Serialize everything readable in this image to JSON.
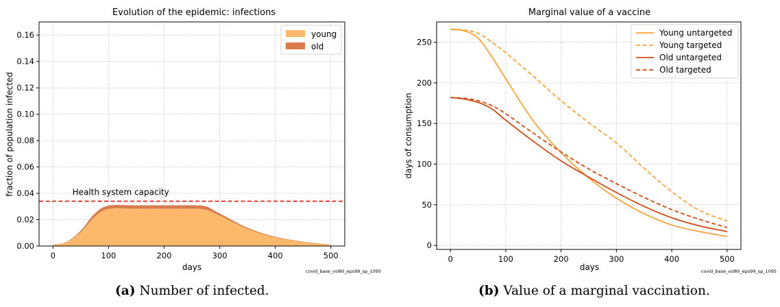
{
  "chart_data": [
    {
      "type": "area",
      "title": "Evolution of the epidemic: infections",
      "xlabel": "days",
      "ylabel": "fraction of population infected",
      "xlim": [
        -25,
        525
      ],
      "ylim": [
        0,
        0.17
      ],
      "xticks": [
        "0",
        "100",
        "200",
        "300",
        "400",
        "500"
      ],
      "yticks": [
        "0.00",
        "0.02",
        "0.04",
        "0.06",
        "0.08",
        "0.10",
        "0.12",
        "0.14",
        "0.16"
      ],
      "grid": true,
      "legend_position": "top-right",
      "stacked": true,
      "x": [
        0,
        25,
        50,
        75,
        100,
        150,
        200,
        250,
        275,
        300,
        350,
        400,
        450,
        500
      ],
      "series": [
        {
          "name": "young",
          "color": "#fdb96b",
          "values": [
            0.001,
            0.003,
            0.0105,
            0.022,
            0.028,
            0.0282,
            0.0282,
            0.0282,
            0.0275,
            0.023,
            0.013,
            0.0065,
            0.003,
            0.001
          ]
        },
        {
          "name": "old",
          "color": "#d87c4e",
          "values": [
            0.0,
            0.0003,
            0.0012,
            0.0025,
            0.0027,
            0.0027,
            0.0027,
            0.0027,
            0.0026,
            0.0017,
            0.0009,
            0.0005,
            0.0003,
            0.0001
          ]
        }
      ],
      "reference_line": {
        "y": 0.034,
        "label": "Health system capacity",
        "color": "#e2261a"
      },
      "annotation": "covid_base_vsl80_eps99_sp_1095"
    },
    {
      "type": "line",
      "title": "Marginal value of a vaccine",
      "xlabel": "days",
      "ylabel": "days of consumption",
      "xlim": [
        -25,
        525
      ],
      "ylim": [
        -5,
        275
      ],
      "xticks": [
        "0",
        "100",
        "200",
        "300",
        "400",
        "500"
      ],
      "yticks": [
        "0",
        "50",
        "100",
        "150",
        "200",
        "250"
      ],
      "grid": true,
      "legend_position": "top-right",
      "x": [
        0,
        25,
        50,
        75,
        100,
        150,
        200,
        250,
        300,
        350,
        400,
        450,
        500
      ],
      "series": [
        {
          "name": "Young untargeted",
          "color": "#f9a23a",
          "dash": false,
          "values": [
            266,
            264,
            255,
            232,
            205,
            153,
            114,
            83,
            58,
            39,
            25,
            17,
            11
          ]
        },
        {
          "name": "Young targeted",
          "color": "#f9a23a",
          "dash": true,
          "values": [
            266,
            265,
            261,
            250,
            237,
            208,
            178,
            151,
            126,
            95,
            66,
            43,
            30
          ]
        },
        {
          "name": "Old untargeted",
          "color": "#cf4a13",
          "dash": false,
          "values": [
            182,
            180,
            176,
            168,
            154,
            128,
            104,
            84,
            65,
            48,
            34,
            24,
            17
          ]
        },
        {
          "name": "Old targeted",
          "color": "#cf4a13",
          "dash": true,
          "values": [
            182,
            181,
            178,
            172,
            162,
            138,
            115,
            94,
            76,
            59,
            44,
            32,
            22
          ]
        }
      ],
      "annotation": "covid_base_vsl80_eps99_sp_1095"
    }
  ],
  "captions": [
    {
      "label": "(a)",
      "text": "Number of infected."
    },
    {
      "label": "(b)",
      "text": "Value of a marginal vaccination."
    }
  ]
}
